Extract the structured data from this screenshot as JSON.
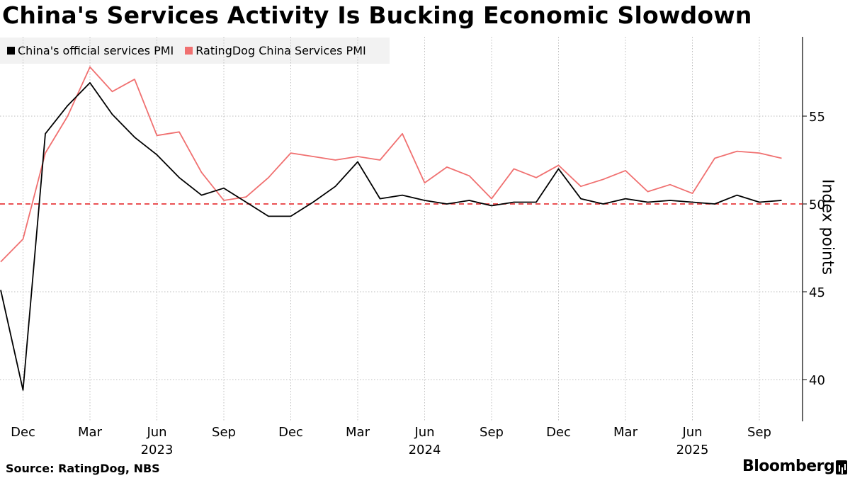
{
  "title": "China's Services Activity Is Bucking Economic Slowdown",
  "source": "Source: RatingDog, NBS",
  "brand": "Bloomberg",
  "chart_data": {
    "type": "line",
    "title": "China's Services Activity Is Bucking Economic Slowdown",
    "ylabel": "Index points",
    "ylim": [
      37.7,
      59.8
    ],
    "yticks": [
      40,
      45,
      50,
      55
    ],
    "reference_line": {
      "value": 50,
      "color": "#e8393d",
      "style": "dashed"
    },
    "x": [
      "2022-11",
      "2022-12",
      "2023-01",
      "2023-02",
      "2023-03",
      "2023-04",
      "2023-05",
      "2023-06",
      "2023-07",
      "2023-08",
      "2023-09",
      "2023-10",
      "2023-11",
      "2023-12",
      "2024-01",
      "2024-02",
      "2024-03",
      "2024-04",
      "2024-05",
      "2024-06",
      "2024-07",
      "2024-08",
      "2024-09",
      "2024-10",
      "2024-11",
      "2024-12",
      "2025-01",
      "2025-02",
      "2025-03",
      "2025-04",
      "2025-05",
      "2025-06",
      "2025-07",
      "2025-08",
      "2025-09",
      "2025-10"
    ],
    "xticks": [
      {
        "label": "Dec",
        "year": ""
      },
      {
        "label": "Mar",
        "year": ""
      },
      {
        "label": "Jun",
        "year": "2023"
      },
      {
        "label": "Sep",
        "year": ""
      },
      {
        "label": "Dec",
        "year": ""
      },
      {
        "label": "Mar",
        "year": ""
      },
      {
        "label": "Jun",
        "year": "2024"
      },
      {
        "label": "Sep",
        "year": ""
      },
      {
        "label": "Dec",
        "year": ""
      },
      {
        "label": "Mar",
        "year": ""
      },
      {
        "label": "Jun",
        "year": "2025"
      },
      {
        "label": "Sep",
        "year": ""
      }
    ],
    "xtick_index": [
      1,
      4,
      7,
      10,
      13,
      16,
      19,
      22,
      25,
      28,
      31,
      34
    ],
    "legend_position": "top-left",
    "series": [
      {
        "name": "China's official services PMI",
        "color": "#000000",
        "values": [
          45.1,
          39.4,
          54.0,
          55.6,
          56.9,
          55.1,
          53.8,
          52.8,
          51.5,
          50.5,
          50.9,
          50.1,
          49.3,
          49.3,
          50.1,
          51.0,
          52.4,
          50.3,
          50.5,
          50.2,
          50.0,
          50.2,
          49.9,
          50.1,
          50.1,
          52.0,
          50.3,
          50.0,
          50.3,
          50.1,
          50.2,
          50.1,
          50.0,
          50.5,
          50.1,
          50.2
        ]
      },
      {
        "name": "RatingDog China Services PMI",
        "color": "#f07070",
        "values": [
          46.7,
          48.0,
          52.9,
          55.0,
          57.8,
          56.4,
          57.1,
          53.9,
          54.1,
          51.8,
          50.2,
          50.4,
          51.5,
          52.9,
          52.7,
          52.5,
          52.7,
          52.5,
          54.0,
          51.2,
          52.1,
          51.6,
          50.3,
          52.0,
          51.5,
          52.2,
          51.0,
          51.4,
          51.9,
          50.7,
          51.1,
          50.6,
          52.6,
          53.0,
          52.9,
          52.6
        ]
      }
    ]
  }
}
